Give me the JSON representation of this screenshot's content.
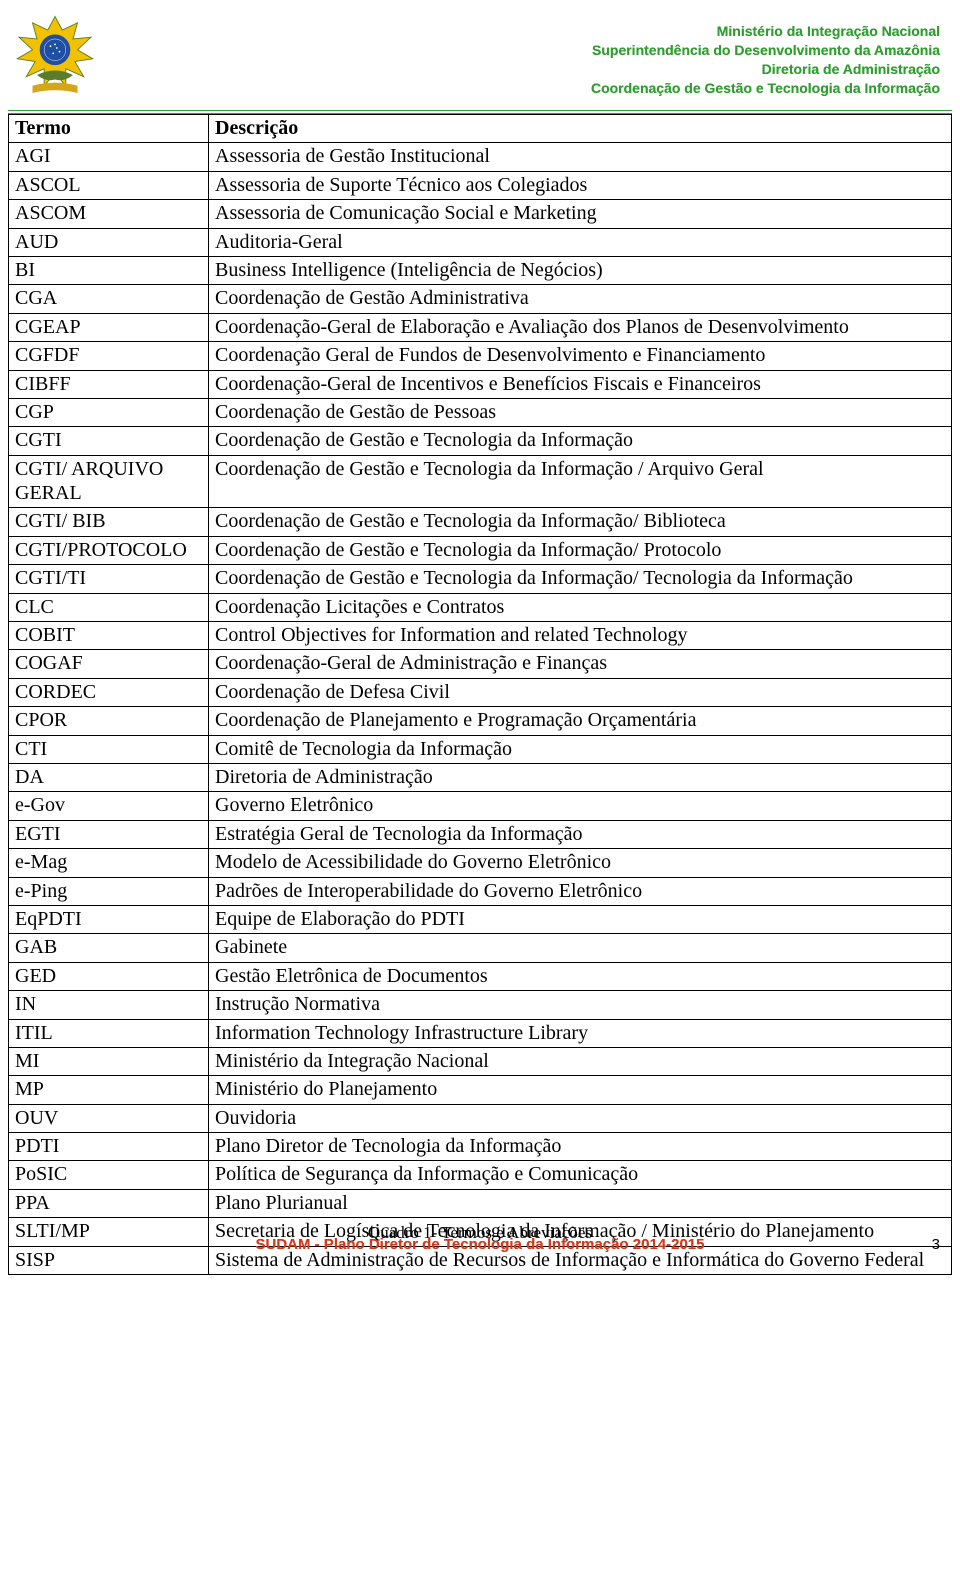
{
  "header": {
    "lines": [
      "Ministério da Integração Nacional",
      "Superintendência do Desenvolvimento da Amazônia",
      "Diretoria de Administração",
      "Coordenação de Gestão e Tecnologia da Informação"
    ],
    "text_color": "#2e9e2e"
  },
  "table": {
    "column_headers": [
      "Termo",
      "Descrição"
    ],
    "rows": [
      [
        "AGI",
        "Assessoria de Gestão Institucional"
      ],
      [
        "ASCOL",
        "Assessoria de Suporte Técnico aos Colegiados"
      ],
      [
        "ASCOM",
        "Assessoria de Comunicação Social e Marketing"
      ],
      [
        "AUD",
        "Auditoria-Geral"
      ],
      [
        "BI",
        "Business Intelligence (Inteligência de Negócios)"
      ],
      [
        "CGA",
        "Coordenação de Gestão Administrativa"
      ],
      [
        "CGEAP",
        "Coordenação-Geral de Elaboração e Avaliação dos Planos de Desenvolvimento"
      ],
      [
        "CGFDF",
        "Coordenação Geral de Fundos de Desenvolvimento e Financiamento"
      ],
      [
        "CIBFF",
        "Coordenação-Geral de Incentivos e Benefícios Fiscais e Financeiros"
      ],
      [
        "CGP",
        "Coordenação de Gestão de Pessoas"
      ],
      [
        "CGTI",
        "Coordenação de Gestão e Tecnologia da Informação"
      ],
      [
        "CGTI/ ARQUIVO GERAL",
        "Coordenação de Gestão e Tecnologia da Informação / Arquivo Geral"
      ],
      [
        "CGTI/ BIB",
        "Coordenação de Gestão e Tecnologia da Informação/ Biblioteca"
      ],
      [
        "CGTI/PROTOCOLO",
        "Coordenação de Gestão e Tecnologia da Informação/ Protocolo"
      ],
      [
        "CGTI/TI",
        "Coordenação de Gestão e Tecnologia da Informação/ Tecnologia da Informação"
      ],
      [
        "CLC",
        "Coordenação Licitações e Contratos"
      ],
      [
        "COBIT",
        "Control Objectives for Information and related Technology"
      ],
      [
        "COGAF",
        "Coordenação-Geral de Administração e Finanças"
      ],
      [
        "CORDEC",
        "Coordenação de Defesa Civil"
      ],
      [
        "CPOR",
        "Coordenação de Planejamento e Programação Orçamentária"
      ],
      [
        "CTI",
        "Comitê de Tecnologia da Informação"
      ],
      [
        "DA",
        "Diretoria de Administração"
      ],
      [
        "e-Gov",
        "Governo Eletrônico"
      ],
      [
        "EGTI",
        "Estratégia Geral de Tecnologia da Informação"
      ],
      [
        "e-Mag",
        "Modelo de Acessibilidade do Governo Eletrônico"
      ],
      [
        "e-Ping",
        "Padrões de Interoperabilidade do Governo Eletrônico"
      ],
      [
        "EqPDTI",
        "Equipe de Elaboração do PDTI"
      ],
      [
        "GAB",
        "Gabinete"
      ],
      [
        "GED",
        "Gestão Eletrônica de Documentos"
      ],
      [
        "IN",
        "Instrução Normativa"
      ],
      [
        "ITIL",
        "Information Technology Infrastructure Library"
      ],
      [
        "MI",
        "Ministério da Integração Nacional"
      ],
      [
        "MP",
        "Ministério do Planejamento"
      ],
      [
        "OUV",
        "Ouvidoria"
      ],
      [
        "PDTI",
        "Plano Diretor de Tecnologia da Informação"
      ],
      [
        "PoSIC",
        "Política de Segurança da Informação e Comunicação"
      ],
      [
        "PPA",
        "Plano Plurianual"
      ],
      [
        "SLTI/MP",
        "Secretaria de Logística de Tecnologia da Informação / Ministério do Planejamento"
      ],
      [
        "SISP",
        "Sistema de Administração de Recursos de Informação e Informática do Governo Federal"
      ]
    ]
  },
  "footer": {
    "caption": "Quadro 1- Termos e Abreviações",
    "watermark": "SUDAM - Plano Diretor de Tecnologia da Informação 2014-2015",
    "watermark_color": "#d43a1a",
    "page_number": "3"
  }
}
